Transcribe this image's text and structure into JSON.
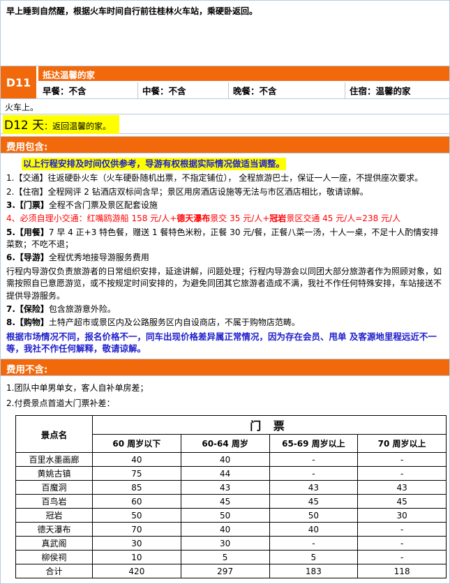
{
  "colors": {
    "accent_orange": "#F2690C",
    "border_blue": "#B7CBE2",
    "highlight_yellow": "#FFFF00",
    "notice_blue": "#2020CC",
    "warning_red": "#FF0000"
  },
  "intro": "早上睡到自然醒，根据火车时间自行前往桂林火车站，乘硬卧返回。",
  "d11": {
    "day": "D11",
    "title": "抵达温馨的家",
    "meals": [
      "早餐：不含",
      "中餐：不含",
      "晚餐：不含",
      "住宿：温馨的家"
    ],
    "train_note": "火车上。"
  },
  "d12": {
    "label": "D12 天",
    "rest": "：返回温馨的家。"
  },
  "fee_include": {
    "header": "费用包含:",
    "notice": "以上行程安排及时间仅供参考，导游有权根据实际情况做适当调整。",
    "item1": "1.【交通】往返硬卧火车（火车硬卧随机出票，不指定铺位）， 全程旅游巴士，保证一人一座，不提供座次要求。",
    "item2": "2.【住宿】全程网评 2 钻酒店双标间含早；景区用房酒店设施等无法与市区酒店相比，敬请谅解。",
    "item3_label": "3.【门票】",
    "item3_text": "全程不含门票及景区配套设施",
    "item4_r1": "4、必须自理小交通：红嘴鸥游船 158 元/人+",
    "item4_b1": "德天瀑布",
    "item4_r2": "景交 35 元/人+",
    "item4_b2": "冠岩",
    "item4_r3": "景区交通 45 元/人=238 元/人",
    "item5_label": "5.【用餐】",
    "item5_text": "7 早 4 正+3 特色餐，赠送 1 餐特色米粉，正餐 30 元/餐，正餐八菜一汤，十人一桌，不足十人酌情安排菜数；不吃不退；",
    "item6_label": "6.【导游】",
    "item6_text": "全程优秀地接导游服务费用",
    "item6_para": "行程内导游仅负责旅游者的日常组织安排，延途讲解，问题处理；行程内导游会以同团大部分旅游者作为照顾对象，如需按照自已意愿游览，或不按规定时间安排的，为避免同团其它旅游者造成不满，我社不作任何特殊安排，车站接送不提供导游服务。",
    "item7_label": "7.【保险】",
    "item7_text": "包含旅游意外险。",
    "item8_label": "8.【购物】",
    "item8_text": "土特产超市或景区内及公路服务区内自设商店，不属于购物店范畴。",
    "market_note": "根据市场情况不同，报名价格不一，同车出现价格差异属正常情况，因为存在会员、甩单 及客源地里程远近不一等，我社不作任何解释，敬请谅解。"
  },
  "fee_exclude": {
    "header": "费用不含:",
    "line1": "1.团队中单男单女，客人自补单房差；",
    "line2": "2.付费景点首道大门票补差："
  },
  "ticket_table": {
    "corner": "景点名",
    "group_header": "门 票",
    "age_headers": [
      "60 周岁以下",
      "60-64 周岁",
      "65-69 周岁以上",
      "70 周岁以上"
    ],
    "rows": [
      {
        "name": "百里水墨画廊",
        "values": [
          "40",
          "40",
          "-",
          "-"
        ]
      },
      {
        "name": "黄姚古镇",
        "values": [
          "75",
          "44",
          "-",
          "-"
        ]
      },
      {
        "name": "百魔洞",
        "values": [
          "85",
          "43",
          "43",
          "43"
        ]
      },
      {
        "name": "百鸟岩",
        "values": [
          "60",
          "45",
          "45",
          "45"
        ]
      },
      {
        "name": "冠岩",
        "values": [
          "50",
          "50",
          "50",
          "30"
        ]
      },
      {
        "name": "德天瀑布",
        "values": [
          "70",
          "40",
          "40",
          "-"
        ]
      },
      {
        "name": "真武阁",
        "values": [
          "30",
          "30",
          "-",
          "-"
        ]
      },
      {
        "name": "柳侯祠",
        "values": [
          "10",
          "5",
          "5",
          "-"
        ]
      },
      {
        "name": "合计",
        "values": [
          "420",
          "297",
          "183",
          "118"
        ]
      }
    ]
  }
}
